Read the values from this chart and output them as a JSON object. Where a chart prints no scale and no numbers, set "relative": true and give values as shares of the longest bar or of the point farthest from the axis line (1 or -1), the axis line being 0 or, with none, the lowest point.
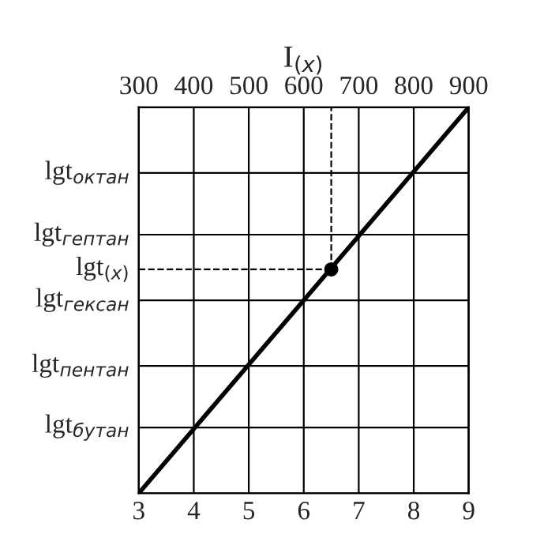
{
  "chart_data": {
    "type": "line",
    "relative": true,
    "x2label": "I$_{(x)}$",
    "xlim": [
      3,
      9
    ],
    "xticks": [
      3,
      4,
      5,
      6,
      7,
      8,
      9
    ],
    "x2lim": [
      300,
      900
    ],
    "x2ticks": [
      300,
      400,
      500,
      600,
      700,
      800,
      900
    ],
    "grid": "x",
    "series": [
      {
        "color": "#000000",
        "x": [
          3,
          9
        ],
        "values": [
          0,
          1
        ],
        "marker": "none",
        "line_style": "solid"
      },
      {
        "type": "scatter",
        "color": "#000000",
        "x": [
          6.5
        ],
        "values": [
          0.58
        ],
        "marker": "circle"
      }
    ],
    "ref_lines": [
      {
        "axis": "y",
        "value": 0.17,
        "label": "lgt$_{бутан}$",
        "color": "#000000"
      },
      {
        "axis": "y",
        "value": 0.33,
        "label": "lgt$_{пентан}$",
        "color": "#000000"
      },
      {
        "axis": "y",
        "value": 0.5,
        "label": "lgt$_{гексан}$",
        "color": "#000000"
      },
      {
        "axis": "y",
        "value": 0.58,
        "label": "lgt$_{(x)}$",
        "line_style": "dashed",
        "color": "#000000"
      },
      {
        "axis": "y",
        "value": 0.67,
        "label": "lgt$_{гептан}$",
        "color": "#000000"
      },
      {
        "axis": "y",
        "value": 0.83,
        "label": "lgt$_{октан}$",
        "color": "#000000"
      },
      {
        "axis": "x",
        "value": 6.5,
        "line_style": "dashed",
        "color": "#000000"
      }
    ]
  }
}
